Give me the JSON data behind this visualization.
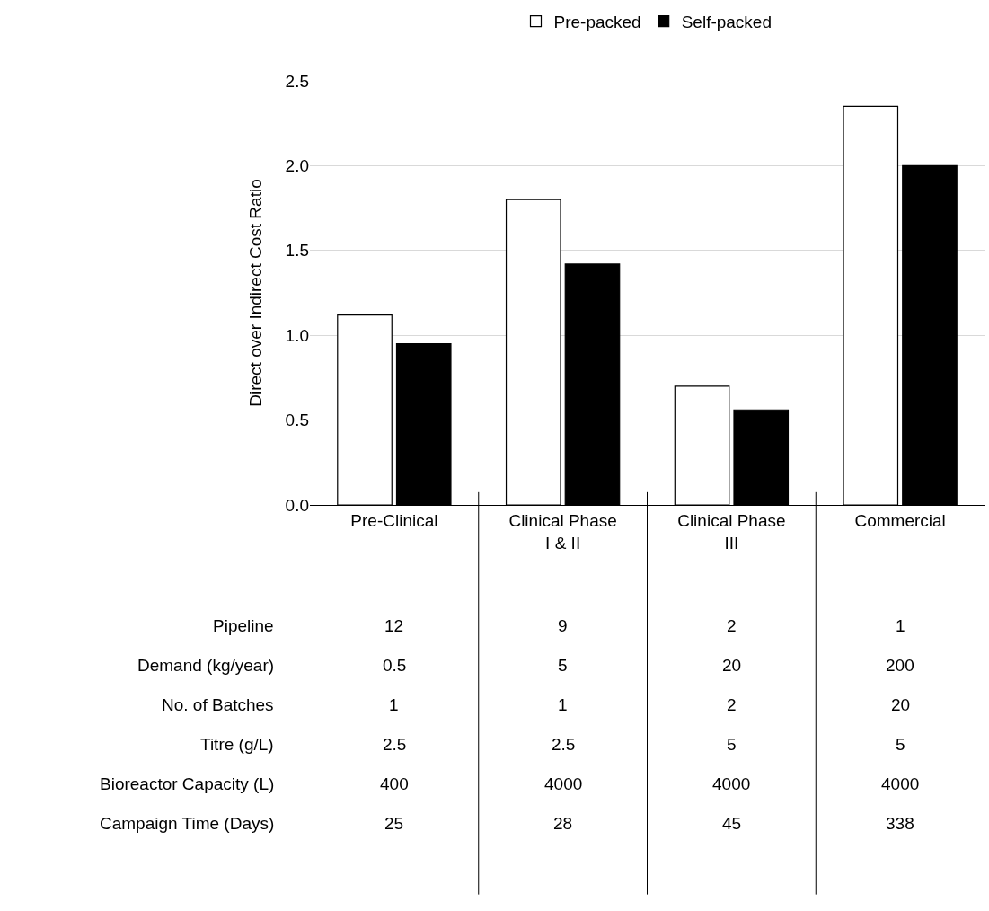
{
  "chart_data": {
    "type": "bar",
    "ylabel": "Direct over Indirect Cost Ratio",
    "categories": [
      "Pre-Clinical",
      "Clinical Phase I & II",
      "Clinical Phase III",
      "Commercial"
    ],
    "series": [
      {
        "name": "Pre-packed",
        "color": "#ffffff",
        "values": [
          1.12,
          1.8,
          0.7,
          2.35
        ]
      },
      {
        "name": "Self-packed",
        "color": "#000000",
        "values": [
          0.95,
          1.42,
          0.56,
          2.0
        ]
      }
    ],
    "ylim": [
      0,
      2.5
    ],
    "yticks": [
      {
        "value": 0,
        "label": "0.0"
      },
      {
        "value": 0.5,
        "label": "0.5"
      },
      {
        "value": 1,
        "label": "1.0"
      },
      {
        "value": 1.5,
        "label": "1.5"
      },
      {
        "value": 2,
        "label": "2.0"
      },
      {
        "value": 2.5,
        "label": "2.5"
      }
    ],
    "grid": "y",
    "legend": "top",
    "annotations": [
      "Pipeline",
      "12",
      "9",
      "2",
      "1",
      "Demand (kg/year)",
      "0.5",
      "5",
      "20",
      "200",
      "No. of Batches",
      "1",
      "1",
      "2",
      "20",
      "Titre (g/L)",
      "2.5",
      "2.5",
      "5",
      "5",
      "Bioreactor Capacity (L)",
      "400",
      "4000",
      "4000",
      "4000",
      "Campaign Time (Days)",
      "25",
      "28",
      "45",
      "338"
    ]
  }
}
